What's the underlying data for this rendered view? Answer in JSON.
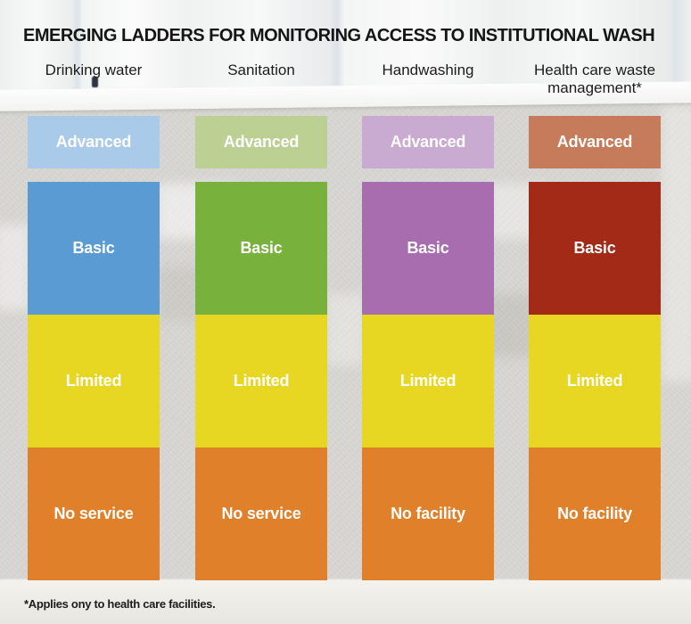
{
  "title": "EMERGING LADDERS FOR MONITORING ACCESS TO INSTITUTIONAL WASH",
  "footnote": "*Applies ony to health care facilities.",
  "ladder": {
    "columns": [
      {
        "header": "Drinking water",
        "levels": [
          {
            "label": "Advanced",
            "color": "#a9cbe9"
          },
          {
            "label": "Basic",
            "color": "#5b9bd3"
          },
          {
            "label": "Limited",
            "color": "#e8d722"
          },
          {
            "label": "No service",
            "color": "#e0802b"
          }
        ]
      },
      {
        "header": "Sanitation",
        "levels": [
          {
            "label": "Advanced",
            "color": "#bdd094"
          },
          {
            "label": "Basic",
            "color": "#78b23d"
          },
          {
            "label": "Limited",
            "color": "#e8d722"
          },
          {
            "label": "No service",
            "color": "#e0802b"
          }
        ]
      },
      {
        "header": "Handwashing",
        "levels": [
          {
            "label": "Advanced",
            "color": "#c9abd2"
          },
          {
            "label": "Basic",
            "color": "#a76daf"
          },
          {
            "label": "Limited",
            "color": "#e8d722"
          },
          {
            "label": "No facility",
            "color": "#e0802b"
          }
        ]
      },
      {
        "header": "Health care waste management*",
        "levels": [
          {
            "label": "Advanced",
            "color": "#c67c5a"
          },
          {
            "label": "Basic",
            "color": "#a22a16"
          },
          {
            "label": "Limited",
            "color": "#e8d722"
          },
          {
            "label": "No facility",
            "color": "#e0802b"
          }
        ]
      }
    ]
  }
}
